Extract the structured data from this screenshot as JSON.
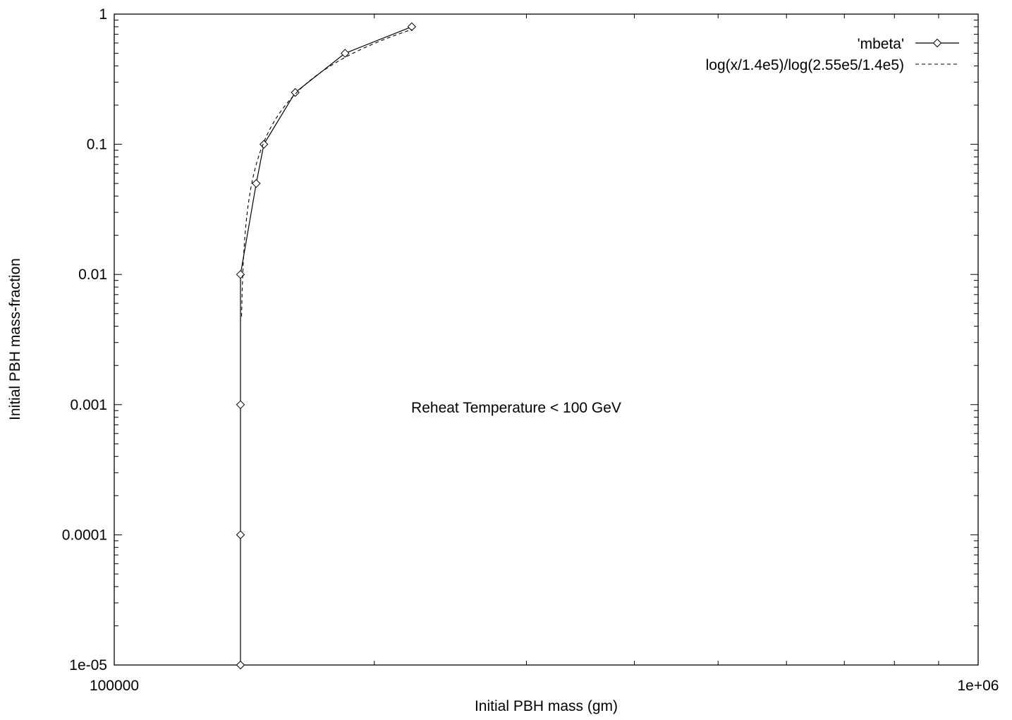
{
  "chart_data": {
    "type": "line",
    "title": "",
    "xlabel": "Initial PBH mass (gm)",
    "ylabel": "Initial PBH mass-fraction",
    "x_scale": "log",
    "y_scale": "log",
    "xlim": [
      100000,
      1000000
    ],
    "ylim": [
      1e-05,
      1
    ],
    "x_tick_labels": [
      "100000",
      "1e+06"
    ],
    "y_tick_labels": [
      "1e-05",
      "0.0001",
      "0.001",
      "0.01",
      "0.1",
      "1"
    ],
    "grid": false,
    "legend_position": "top-right",
    "annotation": "Reheat Temperature < 100 GeV",
    "series": [
      {
        "name": "'mbeta'",
        "style": "solid line with diamond markers",
        "color": "#000000",
        "x": [
          140000,
          140000,
          140000,
          140000,
          146000,
          149000,
          162000,
          185000,
          221000
        ],
        "y": [
          1e-05,
          0.0001,
          0.001,
          0.01,
          0.05,
          0.1,
          0.25,
          0.5,
          0.8
        ]
      },
      {
        "name": "log(x/1.4e5)/log(2.55e5/1.4e5)",
        "style": "dashed line",
        "color": "#000000",
        "function": "log(x/1.4e5)/log(2.55e5/1.4e5)",
        "x_range": [
          140400,
          221000
        ]
      }
    ]
  }
}
